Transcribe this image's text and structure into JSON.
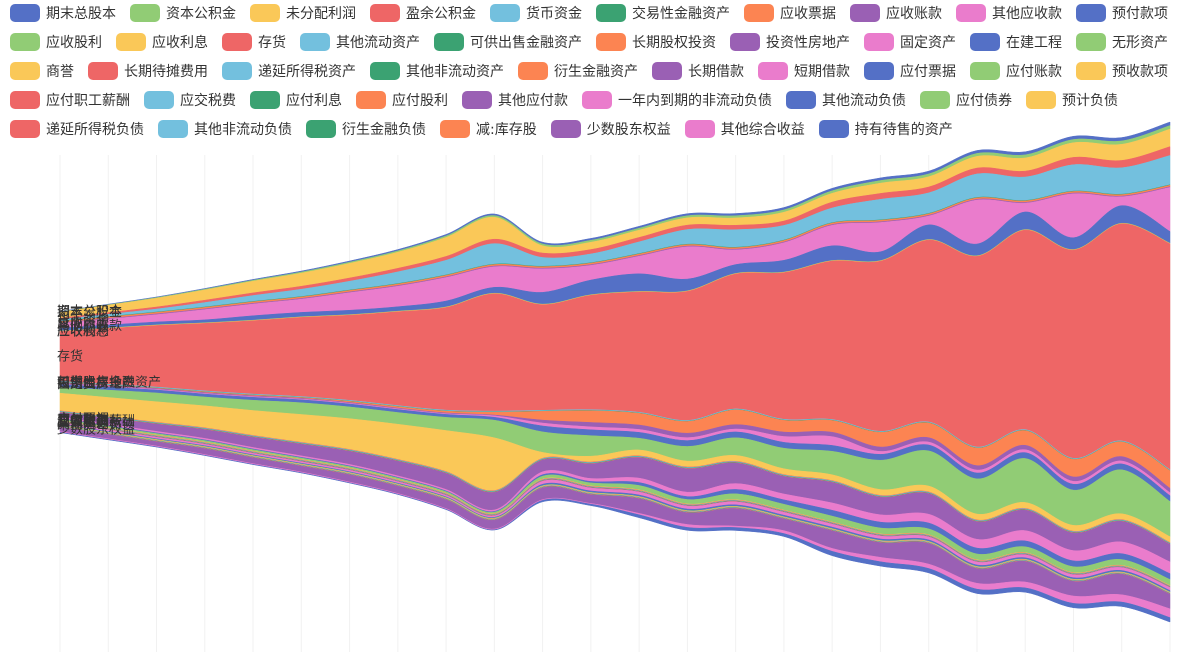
{
  "chart_data": {
    "type": "area",
    "subtype": "themeRiver",
    "title": "",
    "xlabel": "",
    "ylabel": "",
    "legend_position": "top",
    "grid": true,
    "series": [
      {
        "name": "期末总股本",
        "color": "#5470c6"
      },
      {
        "name": "资本公积金",
        "color": "#91cc75"
      },
      {
        "name": "未分配利润",
        "color": "#fac858"
      },
      {
        "name": "盈余公积金",
        "color": "#ee6666"
      },
      {
        "name": "货币资金",
        "color": "#73c0de"
      },
      {
        "name": "交易性金融资产",
        "color": "#3ba272"
      },
      {
        "name": "应收票据",
        "color": "#fc8452"
      },
      {
        "name": "应收账款",
        "color": "#9a60b4"
      },
      {
        "name": "其他应收款",
        "color": "#ea7ccc"
      },
      {
        "name": "预付款项",
        "color": "#5470c6"
      },
      {
        "name": "应收股利",
        "color": "#91cc75"
      },
      {
        "name": "应收利息",
        "color": "#fac858"
      },
      {
        "name": "存货",
        "color": "#ee6666"
      },
      {
        "name": "其他流动资产",
        "color": "#73c0de"
      },
      {
        "name": "可供出售金融资产",
        "color": "#3ba272"
      },
      {
        "name": "长期股权投资",
        "color": "#fc8452"
      },
      {
        "name": "投资性房地产",
        "color": "#9a60b4"
      },
      {
        "name": "固定资产",
        "color": "#ea7ccc"
      },
      {
        "name": "在建工程",
        "color": "#5470c6"
      },
      {
        "name": "无形资产",
        "color": "#91cc75"
      },
      {
        "name": "商誉",
        "color": "#fac858"
      },
      {
        "name": "长期待摊费用",
        "color": "#ee6666"
      },
      {
        "name": "递延所得税资产",
        "color": "#73c0de"
      },
      {
        "name": "其他非流动资产",
        "color": "#3ba272"
      },
      {
        "name": "衍生金融资产",
        "color": "#fc8452"
      },
      {
        "name": "长期借款",
        "color": "#9a60b4"
      },
      {
        "name": "短期借款",
        "color": "#ea7ccc"
      },
      {
        "name": "应付票据",
        "color": "#5470c6"
      },
      {
        "name": "应付账款",
        "color": "#91cc75"
      },
      {
        "name": "预收款项",
        "color": "#fac858"
      },
      {
        "name": "应付职工薪酬",
        "color": "#ee6666"
      },
      {
        "name": "应交税费",
        "color": "#73c0de"
      },
      {
        "name": "应付利息",
        "color": "#3ba272"
      },
      {
        "name": "应付股利",
        "color": "#fc8452"
      },
      {
        "name": "其他应付款",
        "color": "#9a60b4"
      },
      {
        "name": "一年内到期的非流动负债",
        "color": "#ea7ccc"
      },
      {
        "name": "其他流动负债",
        "color": "#5470c6"
      },
      {
        "name": "应付债券",
        "color": "#91cc75"
      },
      {
        "name": "预计负债",
        "color": "#fac858"
      },
      {
        "name": "递延所得税负债",
        "color": "#ee6666"
      },
      {
        "name": "其他非流动负债",
        "color": "#73c0de"
      },
      {
        "name": "衍生金融负债",
        "color": "#3ba272"
      },
      {
        "name": "减:库存股",
        "color": "#fc8452"
      },
      {
        "name": "少数股东权益",
        "color": "#9a60b4"
      },
      {
        "name": "其他综合收益",
        "color": "#ea7ccc"
      },
      {
        "name": "持有待售的资产",
        "color": "#5470c6"
      }
    ],
    "stream_order": [
      0,
      1,
      2,
      3,
      4,
      5,
      6,
      7,
      8,
      9,
      10,
      11,
      12,
      13,
      14,
      15,
      16,
      17,
      18,
      19,
      20,
      21,
      22,
      23,
      24,
      25,
      26,
      27,
      28,
      29,
      30,
      31,
      32,
      33,
      34,
      35,
      36,
      37,
      38,
      39,
      40,
      41,
      42,
      43,
      44,
      45
    ],
    "values": [
      [
        0.35,
        0.4,
        0.45,
        0.5,
        0.6,
        0.7,
        0.8,
        0.9,
        1.0,
        1.1,
        1.2,
        1.3,
        1.3,
        1.4,
        1.5,
        1.6,
        1.7,
        1.8,
        1.9,
        2.0,
        2.1,
        2.2,
        2.3,
        2.4
      ],
      [
        0.2,
        0.3,
        0.4,
        0.5,
        0.6,
        0.7,
        0.8,
        0.9,
        1.0,
        1.1,
        1.2,
        1.3,
        1.3,
        1.4,
        1.5,
        1.6,
        1.7,
        1.8,
        1.9,
        2.0,
        2.1,
        2.2,
        2.3,
        2.4
      ],
      [
        4,
        5,
        6,
        7,
        8,
        9,
        10,
        11,
        13,
        15,
        5,
        5,
        5,
        5,
        5,
        6,
        6,
        7,
        7,
        8,
        9,
        10,
        11,
        12
      ],
      [
        1,
        1.2,
        1.4,
        1.6,
        1.8,
        2,
        2.2,
        2.4,
        2.6,
        3,
        3,
        3,
        3,
        3,
        3,
        3,
        4,
        4,
        4,
        4,
        4,
        5,
        5,
        6
      ],
      [
        1,
        1.5,
        2,
        3,
        4,
        5,
        6,
        8,
        10,
        14,
        6,
        6,
        8,
        10,
        12,
        10,
        10,
        14,
        14,
        16,
        16,
        18,
        18,
        20
      ],
      [
        0.3,
        0.3,
        0.3,
        0.3,
        0.3,
        0.3,
        0.3,
        0.3,
        0.3,
        0.3,
        0.3,
        0.3,
        0.3,
        0.3,
        0.3,
        0.3,
        0.3,
        0.3,
        0.3,
        0.3,
        0.3,
        0.3,
        0.3,
        0.3
      ],
      [
        1,
        1,
        1,
        1,
        1,
        1,
        1,
        1,
        1,
        1,
        1,
        1,
        1,
        1,
        1,
        1,
        1,
        1,
        1,
        1,
        1,
        1,
        1,
        1
      ],
      [
        0.5,
        0.5,
        0.5,
        0.5,
        0.5,
        0.5,
        0.5,
        0.5,
        0.5,
        0.5,
        0.5,
        0.5,
        0.5,
        0.5,
        0.5,
        0.5,
        0.5,
        0.5,
        0.5,
        0.5,
        0.5,
        0.5,
        0.5,
        0.5
      ],
      [
        3,
        4,
        5,
        7,
        8,
        9,
        12,
        14,
        16,
        14,
        16,
        10,
        12,
        22,
        10,
        12,
        14,
        20,
        6,
        30,
        6,
        30,
        6,
        30
      ],
      [
        2,
        2,
        2,
        2,
        3,
        3,
        3,
        3,
        4,
        4,
        8,
        10,
        12,
        8,
        6,
        8,
        10,
        6,
        10,
        8,
        12,
        8,
        12,
        8
      ],
      [
        0.2,
        0.2,
        0.2,
        0.2,
        0.2,
        0.2,
        0.2,
        0.2,
        0.2,
        0.2,
        0.2,
        0.2,
        0.2,
        0.2,
        0.2,
        0.2,
        0.2,
        0.2,
        0.2,
        0.2,
        0.2,
        0.2,
        0.2,
        0.2
      ],
      [
        0.2,
        0.2,
        0.2,
        0.2,
        0.2,
        0.2,
        0.2,
        0.2,
        0.2,
        0.2,
        0.2,
        0.2,
        0.2,
        0.2,
        0.2,
        0.2,
        0.2,
        0.2,
        0.2,
        0.2,
        0.2,
        0.2,
        0.2,
        0.2
      ],
      [
        34,
        38,
        42,
        46,
        50,
        54,
        58,
        64,
        70,
        80,
        72,
        78,
        82,
        88,
        92,
        100,
        108,
        116,
        124,
        130,
        136,
        142,
        148,
        154
      ],
      [
        0.5,
        0.5,
        0.5,
        0.5,
        0.5,
        0.5,
        0.5,
        0.5,
        0.5,
        0.5,
        0.5,
        0.5,
        0.5,
        0.5,
        0.5,
        0.5,
        0.5,
        0.5,
        0.5,
        0.5,
        0.5,
        0.5,
        0.5,
        0.5
      ],
      [
        0.2,
        0.2,
        0.2,
        0.2,
        0.2,
        0.2,
        0.2,
        0.2,
        0.2,
        0.2,
        0.2,
        0.2,
        0.2,
        0.2,
        0.2,
        0.2,
        0.2,
        0.2,
        0.2,
        0.2,
        0.2,
        0.2,
        0.2,
        0.2
      ],
      [
        0.3,
        0.3,
        0.3,
        0.5,
        0.5,
        0.5,
        0.8,
        1.0,
        1.2,
        2,
        6,
        8,
        8,
        8,
        10,
        8,
        8,
        10,
        10,
        12,
        10,
        12,
        10,
        12
      ],
      [
        0.5,
        0.5,
        0.5,
        0.5,
        0.5,
        0.5,
        0.5,
        0.5,
        0.5,
        0.5,
        2,
        3,
        3,
        3,
        3,
        3,
        3,
        3,
        3,
        3,
        3,
        3,
        3,
        3
      ],
      [
        0.5,
        0.5,
        0.5,
        0.5,
        0.5,
        0.5,
        0.5,
        0.5,
        0.5,
        1,
        2,
        2,
        2,
        2,
        2,
        4,
        6,
        2,
        2,
        2,
        2,
        2,
        2,
        2
      ],
      [
        2,
        2,
        2,
        2,
        2,
        2,
        2,
        2,
        2,
        2,
        4,
        4,
        4,
        4,
        4,
        4,
        4,
        4,
        4,
        4,
        4,
        4,
        4,
        4
      ],
      [
        4,
        5,
        6,
        6,
        7,
        8,
        8,
        8,
        9,
        12,
        14,
        14,
        8,
        10,
        12,
        14,
        16,
        20,
        24,
        24,
        30,
        24,
        30,
        24
      ],
      [
        12,
        13,
        14,
        15,
        17,
        19,
        21,
        24,
        28,
        36,
        4,
        4,
        4,
        4,
        4,
        4,
        4,
        4,
        4,
        4,
        4,
        4,
        4,
        4
      ],
      [
        0.3,
        0.3,
        0.3,
        0.3,
        0.3,
        0.3,
        0.3,
        0.3,
        0.3,
        0.3,
        0.3,
        0.3,
        0.3,
        0.3,
        0.3,
        0.3,
        0.3,
        0.3,
        0.3,
        0.3,
        0.3,
        0.3,
        0.3,
        0.3
      ],
      [
        0.4,
        0.4,
        0.4,
        0.4,
        0.4,
        0.4,
        0.4,
        0.4,
        0.4,
        0.4,
        0.4,
        0.4,
        0.4,
        0.4,
        0.4,
        0.4,
        0.4,
        0.4,
        0.4,
        0.4,
        0.4,
        0.4,
        0.4,
        0.4
      ],
      [
        0.3,
        0.3,
        0.3,
        0.3,
        0.3,
        0.3,
        0.3,
        0.3,
        0.3,
        0.3,
        0.3,
        0.3,
        0.3,
        0.3,
        0.3,
        0.3,
        0.3,
        0.3,
        0.3,
        0.3,
        0.3,
        0.3,
        0.3,
        0.3
      ],
      [
        0.2,
        0.2,
        0.2,
        0.2,
        0.2,
        0.2,
        0.2,
        0.2,
        0.2,
        0.2,
        0.2,
        0.2,
        0.2,
        0.2,
        0.2,
        0.2,
        0.2,
        0.2,
        0.2,
        0.2,
        0.2,
        0.2,
        0.2,
        0.2
      ],
      [
        3,
        4,
        5,
        6,
        7,
        8,
        9,
        10,
        11,
        12,
        8,
        10,
        14,
        16,
        14,
        12,
        14,
        12,
        14,
        12,
        14,
        12,
        14,
        12
      ],
      [
        1,
        1,
        1,
        1,
        1,
        1,
        1,
        1,
        1,
        1,
        2,
        2,
        3,
        3,
        4,
        4,
        5,
        5,
        6,
        6,
        7,
        7,
        8,
        8
      ],
      [
        0.5,
        0.5,
        0.5,
        0.5,
        0.5,
        0.5,
        0.5,
        0.5,
        0.5,
        0.5,
        1,
        1,
        2,
        2,
        3,
        3,
        4,
        4,
        4,
        4,
        4,
        4,
        4,
        4
      ],
      [
        1,
        1,
        1,
        1,
        1,
        1,
        1,
        1,
        1,
        1,
        2,
        2,
        3,
        3,
        4,
        4,
        4,
        4,
        4,
        4,
        4,
        4,
        4,
        4
      ],
      [
        0.3,
        0.3,
        0.3,
        0.3,
        0.3,
        0.3,
        0.3,
        0.3,
        0.3,
        0.3,
        0.3,
        0.3,
        0.3,
        0.3,
        0.3,
        0.3,
        0.3,
        0.3,
        0.3,
        0.3,
        0.3,
        0.3,
        0.3,
        0.3
      ],
      [
        0.3,
        0.3,
        0.3,
        0.3,
        0.3,
        0.3,
        0.3,
        0.3,
        0.3,
        0.3,
        0.3,
        0.3,
        0.3,
        0.3,
        0.3,
        0.3,
        0.3,
        0.3,
        0.3,
        0.3,
        0.3,
        0.3,
        0.3,
        0.3
      ],
      [
        0.3,
        0.3,
        0.3,
        0.3,
        0.3,
        0.3,
        0.3,
        0.3,
        0.3,
        0.3,
        0.3,
        0.3,
        0.3,
        0.3,
        0.3,
        0.3,
        0.3,
        0.3,
        0.3,
        0.3,
        0.3,
        0.3,
        0.3,
        0.3
      ],
      [
        0.2,
        0.2,
        0.2,
        0.2,
        0.2,
        0.2,
        0.2,
        0.2,
        0.2,
        0.2,
        0.2,
        0.2,
        0.2,
        0.2,
        0.2,
        0.2,
        0.2,
        0.2,
        0.2,
        0.2,
        0.2,
        0.2,
        0.2,
        0.2
      ],
      [
        0.2,
        0.2,
        0.2,
        0.2,
        0.2,
        0.2,
        0.2,
        0.2,
        0.2,
        0.2,
        0.2,
        0.2,
        0.2,
        0.2,
        0.2,
        0.2,
        0.2,
        0.2,
        0.2,
        0.2,
        0.2,
        0.2,
        0.2,
        0.2
      ],
      [
        0.2,
        0.2,
        0.2,
        0.2,
        0.2,
        0.2,
        0.2,
        0.2,
        0.2,
        0.2,
        0.2,
        0.2,
        0.2,
        0.2,
        0.2,
        0.2,
        0.2,
        0.2,
        0.2,
        0.2,
        0.2,
        0.2,
        0.2,
        0.2
      ],
      [
        1,
        1,
        1,
        1,
        1,
        1,
        1,
        1,
        1,
        1,
        2,
        2,
        2,
        2,
        2,
        2,
        2,
        2,
        2,
        2,
        2,
        2,
        2,
        2
      ],
      [
        0.5,
        0.5,
        0.5,
        0.5,
        0.5,
        0.5,
        0.5,
        0.5,
        0.5,
        0.5,
        1,
        1,
        1,
        1,
        1,
        1,
        1,
        1,
        1,
        1,
        1,
        1,
        1,
        1
      ],
      [
        0.3,
        0.3,
        0.3,
        0.3,
        0.3,
        0.3,
        0.3,
        0.3,
        0.3,
        0.3,
        0.3,
        0.3,
        0.3,
        0.3,
        0.3,
        0.3,
        0.3,
        0.3,
        0.3,
        0.3,
        0.3,
        0.3,
        0.3,
        0.3
      ],
      [
        0.3,
        0.3,
        0.3,
        0.3,
        0.3,
        0.3,
        0.3,
        0.3,
        0.3,
        0.3,
        0.3,
        0.3,
        0.3,
        0.3,
        0.3,
        0.3,
        0.3,
        0.3,
        0.3,
        0.3,
        0.3,
        0.3,
        0.3,
        0.3
      ],
      [
        0.2,
        0.2,
        0.2,
        0.2,
        0.2,
        0.2,
        0.2,
        0.2,
        0.2,
        0.2,
        0.2,
        0.2,
        0.2,
        0.2,
        0.2,
        0.2,
        0.2,
        0.2,
        0.2,
        0.2,
        0.2,
        0.2,
        0.2,
        0.2
      ],
      [
        0.3,
        0.3,
        0.3,
        0.3,
        0.3,
        0.3,
        0.3,
        0.3,
        0.3,
        0.3,
        0.3,
        0.3,
        0.3,
        0.3,
        0.3,
        0.3,
        0.3,
        0.3,
        0.3,
        0.3,
        0.3,
        0.3,
        0.3,
        0.3
      ],
      [
        0.2,
        0.2,
        0.2,
        0.2,
        0.2,
        0.2,
        0.2,
        0.2,
        0.2,
        0.2,
        0.2,
        0.2,
        0.2,
        0.2,
        0.2,
        0.2,
        0.2,
        0.2,
        0.2,
        0.2,
        0.2,
        0.2,
        0.2,
        0.2
      ],
      [
        0.2,
        0.2,
        0.2,
        0.2,
        0.2,
        0.2,
        0.2,
        0.2,
        0.2,
        0.2,
        0.2,
        0.2,
        0.2,
        0.2,
        0.2,
        0.2,
        0.2,
        0.2,
        0.2,
        0.2,
        0.2,
        0.2,
        0.2,
        0.2
      ],
      [
        3,
        3,
        3,
        4,
        4,
        4,
        5,
        5,
        6,
        6,
        8,
        6,
        10,
        8,
        12,
        8,
        12,
        10,
        14,
        10,
        14,
        10,
        14,
        10
      ],
      [
        0.5,
        0.5,
        0.5,
        0.5,
        0.5,
        0.5,
        0.5,
        0.5,
        0.5,
        0.5,
        0.5,
        0.5,
        1,
        2,
        1,
        2,
        2,
        3,
        3,
        4,
        4,
        5,
        5,
        6
      ],
      [
        0.2,
        0.2,
        0.2,
        0.2,
        0.2,
        0.2,
        0.2,
        0.2,
        0.2,
        0.2,
        1,
        1,
        2,
        2,
        2,
        2,
        3,
        3,
        3,
        3,
        3,
        3,
        3,
        3
      ]
    ],
    "series_labels": [
      {
        "index": 0,
        "text": "期末总股本"
      },
      {
        "index": 1,
        "text": "资本公积金"
      },
      {
        "index": 4,
        "text": "货币资金"
      },
      {
        "index": 7,
        "text": "应收账款"
      },
      {
        "index": 8,
        "text": "其他应收款"
      },
      {
        "index": 10,
        "text": "应收股利"
      },
      {
        "index": 11,
        "text": "应收利息"
      },
      {
        "index": 12,
        "text": "存货"
      },
      {
        "index": 14,
        "text": "可供出售金融资产"
      },
      {
        "index": 15,
        "text": "长期股权投资"
      },
      {
        "index": 16,
        "text": "投资性房地产"
      },
      {
        "index": 17,
        "text": "固定资产"
      },
      {
        "index": 27,
        "text": "应付票据"
      },
      {
        "index": 28,
        "text": "应付账款"
      },
      {
        "index": 29,
        "text": "预收款项"
      },
      {
        "index": 30,
        "text": "应付职工薪酬"
      },
      {
        "index": 31,
        "text": "应交税费"
      },
      {
        "index": 34,
        "text": "其他应付款"
      },
      {
        "index": 36,
        "text": "其他流动负债"
      },
      {
        "index": 43,
        "text": "少数股东权益"
      }
    ]
  }
}
